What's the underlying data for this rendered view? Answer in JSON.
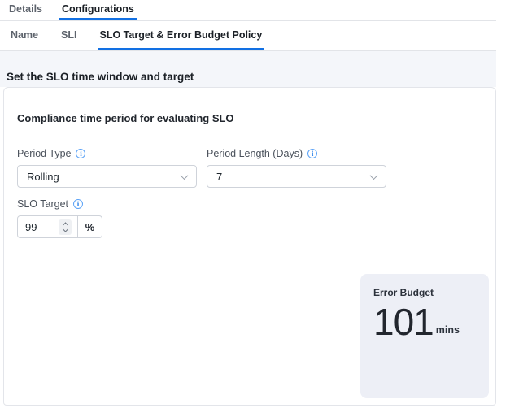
{
  "tabs": [
    {
      "label": "Details",
      "active": false
    },
    {
      "label": "Configurations",
      "active": true
    }
  ],
  "subtabs": [
    {
      "label": "Name",
      "active": false
    },
    {
      "label": "SLI",
      "active": false
    },
    {
      "label": "SLO Target & Error Budget Policy",
      "active": true
    }
  ],
  "section": {
    "heading": "Set the SLO time window and target"
  },
  "panel": {
    "subheading": "Compliance time period for evaluating SLO",
    "fields": {
      "period_type": {
        "label": "Period Type",
        "value": "Rolling"
      },
      "period_length": {
        "label": "Period Length (Days)",
        "value": "7"
      },
      "slo_target": {
        "label": "SLO Target",
        "value": "99",
        "unit": "%"
      }
    },
    "error_budget": {
      "title": "Error Budget",
      "value": "101",
      "unit": "mins"
    }
  },
  "icons": {
    "info": "i"
  },
  "colors": {
    "accent_underline": "#1270e3",
    "info_blue": "#1c79e8",
    "band_background": "#f4f6fa",
    "card_background": "#edeff6",
    "border": "#e3e5ea"
  }
}
